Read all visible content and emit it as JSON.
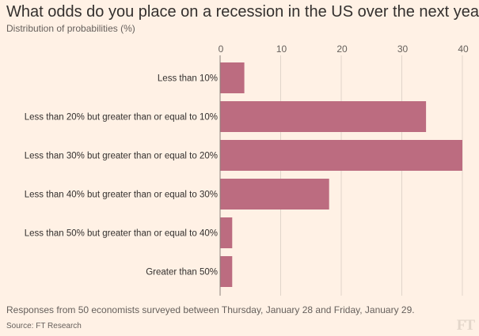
{
  "colors": {
    "bar": "#BC6C80",
    "grid": "#E0D5CA",
    "axis": "#8A817A",
    "background": "#FFF1E5"
  },
  "chart_data": {
    "type": "bar",
    "orientation": "horizontal",
    "title": "What odds do you place on a recession in the US over the next year?",
    "subtitle": "Distribution of probabilities (%)",
    "categories": [
      "Less than 10%",
      "Less than 20% but greater than or equal to 10%",
      "Less than 30% but greater than or equal to 20%",
      "Less than 40% but greater than or equal to 30%",
      "Less than 50% but greater than or equal to 40%",
      "Greater than 50%"
    ],
    "values": [
      4,
      34,
      40,
      18,
      2,
      2
    ],
    "xlim": [
      0,
      40
    ],
    "xticks": [
      0,
      10,
      20,
      30,
      40
    ],
    "grid": true,
    "xlabel": "",
    "ylabel": ""
  },
  "footer": {
    "note": "Responses from 50 economists surveyed between Thursday, January 28 and Friday, January 29.",
    "source": "Source: FT Research"
  },
  "logo": "FT"
}
